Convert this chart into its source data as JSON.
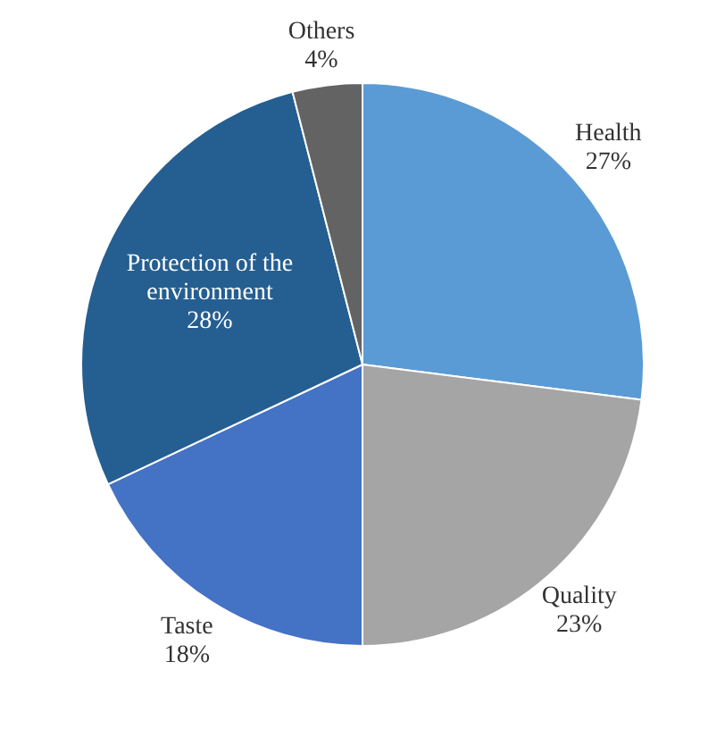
{
  "chart_data": {
    "type": "pie",
    "categories": [
      "Health",
      "Quality",
      "Taste",
      "Protection of the environment",
      "Others"
    ],
    "values": [
      27,
      23,
      18,
      28,
      4
    ],
    "value_labels": [
      "27%",
      "23%",
      "18%",
      "28%",
      "4%"
    ],
    "colors": [
      "#5b9bd5",
      "#a5a5a5",
      "#4472c4",
      "#255e91",
      "#636363"
    ],
    "legend": false
  }
}
